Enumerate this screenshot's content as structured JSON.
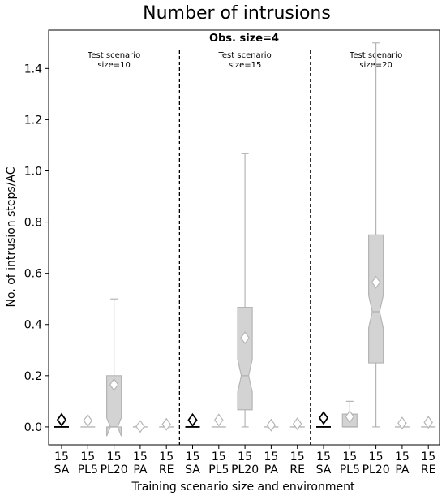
{
  "chart_data": {
    "type": "box",
    "title": "Number of intrusions",
    "subtitle": "Obs. size=4",
    "xlabel": "Training scenario size and environment",
    "ylabel": "No. of intrusion steps/AC",
    "ylim": [
      -0.07,
      1.55
    ],
    "yticks": [
      0.0,
      0.2,
      0.4,
      0.6,
      0.8,
      1.0,
      1.2,
      1.4
    ],
    "ytick_labels": [
      "0.0",
      "0.2",
      "0.4",
      "0.6",
      "0.8",
      "1.0",
      "1.2",
      "1.4"
    ],
    "grid": false,
    "panels": [
      {
        "label": "Test scenario\nsize=10",
        "boxes": [
          {
            "size": "15",
            "env": "SA",
            "q1": 0.0,
            "median": 0.0,
            "q3": 0.0,
            "whislo": 0.0,
            "whishi": 0.0,
            "mean": 0.028,
            "highlight": true
          },
          {
            "size": "15",
            "env": "PL5",
            "q1": 0.0,
            "median": 0.0,
            "q3": 0.0,
            "whislo": 0.0,
            "whishi": 0.0,
            "mean": 0.025
          },
          {
            "size": "15",
            "env": "PL20",
            "q1": 0.0,
            "median": 0.0,
            "q3": 0.2,
            "whislo": 0.0,
            "whishi": 0.5,
            "mean": 0.165
          },
          {
            "size": "15",
            "env": "PA",
            "q1": 0.0,
            "median": 0.0,
            "q3": 0.0,
            "whislo": 0.0,
            "whishi": 0.0,
            "mean": 0.002
          },
          {
            "size": "15",
            "env": "RE",
            "q1": 0.0,
            "median": 0.0,
            "q3": 0.0,
            "whislo": 0.0,
            "whishi": 0.0,
            "mean": 0.01
          }
        ]
      },
      {
        "label": "Test scenario\nsize=15",
        "boxes": [
          {
            "size": "15",
            "env": "SA",
            "q1": 0.0,
            "median": 0.0,
            "q3": 0.0,
            "whislo": 0.0,
            "whishi": 0.0,
            "mean": 0.027,
            "highlight": true
          },
          {
            "size": "15",
            "env": "PL5",
            "q1": 0.0,
            "median": 0.0,
            "q3": 0.0,
            "whislo": 0.0,
            "whishi": 0.0,
            "mean": 0.027
          },
          {
            "size": "15",
            "env": "PL20",
            "q1": 0.067,
            "median": 0.2,
            "q3": 0.467,
            "whislo": 0.0,
            "whishi": 1.067,
            "mean": 0.348
          },
          {
            "size": "15",
            "env": "PA",
            "q1": 0.0,
            "median": 0.0,
            "q3": 0.0,
            "whislo": 0.0,
            "whishi": 0.0,
            "mean": 0.007
          },
          {
            "size": "15",
            "env": "RE",
            "q1": 0.0,
            "median": 0.0,
            "q3": 0.0,
            "whislo": 0.0,
            "whishi": 0.0,
            "mean": 0.012
          }
        ]
      },
      {
        "label": "Test scenario\nsize=20",
        "boxes": [
          {
            "size": "15",
            "env": "SA",
            "q1": 0.0,
            "median": 0.0,
            "q3": 0.0,
            "whislo": 0.0,
            "whishi": 0.0,
            "mean": 0.035,
            "highlight": true
          },
          {
            "size": "15",
            "env": "PL5",
            "q1": 0.0,
            "median": 0.0,
            "q3": 0.05,
            "whislo": 0.0,
            "whishi": 0.1,
            "mean": 0.04
          },
          {
            "size": "15",
            "env": "PL20",
            "q1": 0.25,
            "median": 0.45,
            "q3": 0.75,
            "whislo": 0.0,
            "whishi": 1.5,
            "mean": 0.565
          },
          {
            "size": "15",
            "env": "PA",
            "q1": 0.0,
            "median": 0.0,
            "q3": 0.0,
            "whislo": 0.0,
            "whishi": 0.0,
            "mean": 0.015
          },
          {
            "size": "15",
            "env": "RE",
            "q1": 0.0,
            "median": 0.0,
            "q3": 0.0,
            "whislo": 0.0,
            "whishi": 0.0,
            "mean": 0.018
          }
        ]
      }
    ]
  },
  "colors": {
    "box_fill": "#d3d3d3",
    "box_edge": "#b5b5b5",
    "highlight": "#000000",
    "divider": "#000000"
  }
}
